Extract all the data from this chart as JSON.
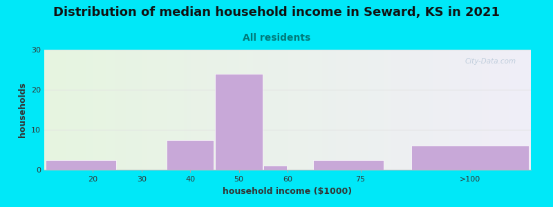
{
  "title": "Distribution of median household income in Seward, KS in 2021",
  "subtitle": "All residents",
  "xlabel": "household income ($1000)",
  "ylabel": "households",
  "bar_left_edges": [
    10,
    35,
    45,
    55,
    65,
    85
  ],
  "bar_widths": [
    15,
    10,
    10,
    5,
    15,
    25
  ],
  "bar_heights": [
    2.5,
    7.5,
    24,
    1,
    2.5,
    6
  ],
  "bar_color": "#c8a8d8",
  "bar_edgecolor": "#ffffff",
  "xtick_positions": [
    20,
    30,
    40,
    50,
    60,
    75
  ],
  "xtick_labels": [
    "20",
    "30",
    "40",
    "50",
    "60",
    "75"
  ],
  "xtick_extra_pos": 97.5,
  "xtick_extra_label": ">100",
  "ylim": [
    0,
    30
  ],
  "yticks": [
    0,
    10,
    20,
    30
  ],
  "grid_color": "#e0e0e0",
  "bg_outer": "#00e8f8",
  "bg_plot_left": "#e6f5e0",
  "bg_plot_right": "#f0eef8",
  "title_fontsize": 13,
  "subtitle_fontsize": 10,
  "subtitle_color": "#007a7a",
  "axis_label_fontsize": 9,
  "tick_fontsize": 8,
  "watermark_text": "City-Data.com",
  "watermark_color": "#b8c8d8",
  "xlim_min": 10,
  "xlim_max": 110
}
